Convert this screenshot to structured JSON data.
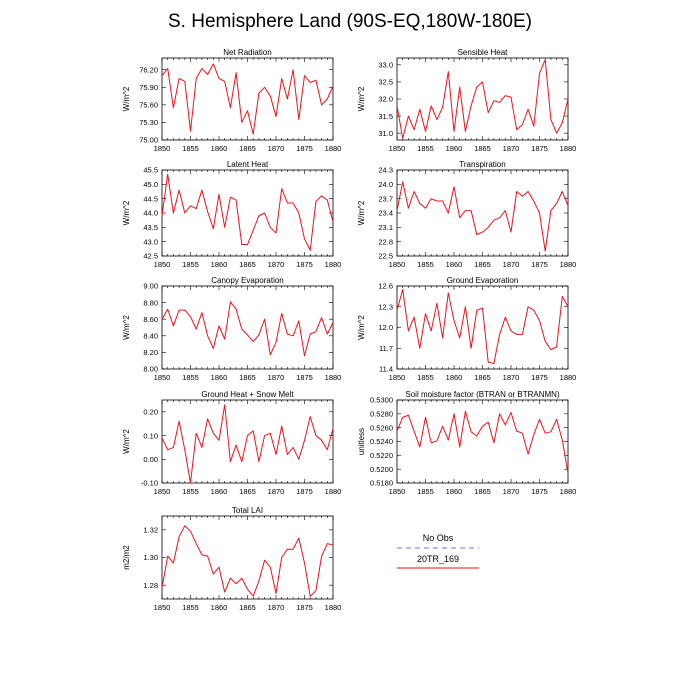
{
  "title": "S. Hemisphere Land (90S-EQ,180W-180E)",
  "colors": {
    "model": "#e8141c",
    "obs": "#8c8ce6",
    "axis": "#000000"
  },
  "legend": {
    "obs_label": "No Obs",
    "model_label": "20TR_169"
  },
  "chart_data": [
    {
      "type": "line",
      "title": "Net Radiation",
      "xlabel": "",
      "ylabel": "W/m^2",
      "xlim": [
        1850,
        1880
      ],
      "ylim": [
        75.0,
        76.4
      ],
      "x_ticks": [
        1850,
        1855,
        1860,
        1865,
        1870,
        1875,
        1880
      ],
      "y_ticks": [
        "75.00",
        "75.30",
        "75.60",
        "75.90",
        "76.20"
      ],
      "series": [
        {
          "name": "20TR_169",
          "x": [
            1850,
            1851,
            1852,
            1853,
            1854,
            1855,
            1856,
            1857,
            1858,
            1859,
            1860,
            1861,
            1862,
            1863,
            1864,
            1865,
            1866,
            1867,
            1868,
            1869,
            1870,
            1871,
            1872,
            1873,
            1874,
            1875,
            1876,
            1877,
            1878,
            1879,
            1880
          ],
          "values": [
            76.1,
            76.22,
            75.55,
            76.05,
            76.0,
            75.15,
            76.05,
            76.22,
            76.12,
            76.3,
            76.05,
            76.0,
            75.55,
            76.15,
            75.3,
            75.5,
            75.1,
            75.8,
            75.9,
            75.75,
            75.4,
            76.05,
            75.7,
            76.2,
            75.35,
            76.1,
            75.98,
            76.02,
            75.6,
            75.7,
            75.92
          ]
        }
      ]
    },
    {
      "type": "line",
      "title": "Sensible Heat",
      "xlabel": "",
      "ylabel": "W/m^2",
      "xlim": [
        1850,
        1880
      ],
      "ylim": [
        30.8,
        33.2
      ],
      "x_ticks": [
        1850,
        1855,
        1860,
        1865,
        1870,
        1875,
        1880
      ],
      "y_ticks": [
        "31.0",
        "31.5",
        "32.0",
        "32.5",
        "33.0"
      ],
      "series": [
        {
          "name": "20TR_169",
          "x": [
            1850,
            1851,
            1852,
            1853,
            1854,
            1855,
            1856,
            1857,
            1858,
            1859,
            1860,
            1861,
            1862,
            1863,
            1864,
            1865,
            1866,
            1867,
            1868,
            1869,
            1870,
            1871,
            1872,
            1873,
            1874,
            1875,
            1876,
            1877,
            1878,
            1879,
            1880
          ],
          "values": [
            31.8,
            30.85,
            31.5,
            31.1,
            31.7,
            31.05,
            31.8,
            31.4,
            31.75,
            32.8,
            31.05,
            32.35,
            31.05,
            31.8,
            32.35,
            32.5,
            31.6,
            31.95,
            31.9,
            32.1,
            32.05,
            31.1,
            31.25,
            31.7,
            31.2,
            32.75,
            33.15,
            31.4,
            31.0,
            31.3,
            32.0
          ]
        }
      ]
    },
    {
      "type": "line",
      "title": "Latent Heat",
      "xlabel": "",
      "ylabel": "W/m^2",
      "xlim": [
        1850,
        1880
      ],
      "ylim": [
        42.5,
        45.5
      ],
      "x_ticks": [
        1850,
        1855,
        1860,
        1865,
        1870,
        1875,
        1880
      ],
      "y_ticks": [
        "42.5",
        "43.0",
        "43.5",
        "44.0",
        "44.5",
        "45.0",
        "45.5"
      ],
      "series": [
        {
          "name": "20TR_169",
          "x": [
            1850,
            1851,
            1852,
            1853,
            1854,
            1855,
            1856,
            1857,
            1858,
            1859,
            1860,
            1861,
            1862,
            1863,
            1864,
            1865,
            1866,
            1867,
            1868,
            1869,
            1870,
            1871,
            1872,
            1873,
            1874,
            1875,
            1876,
            1877,
            1878,
            1879,
            1880
          ],
          "values": [
            43.9,
            45.35,
            44.0,
            44.8,
            44.0,
            44.25,
            44.15,
            44.8,
            44.05,
            43.45,
            44.65,
            43.5,
            44.55,
            44.45,
            42.9,
            42.9,
            43.4,
            43.9,
            44.0,
            43.5,
            43.3,
            44.85,
            44.35,
            44.35,
            44.0,
            43.1,
            42.7,
            44.4,
            44.6,
            44.45,
            43.7
          ]
        }
      ]
    },
    {
      "type": "line",
      "title": "Transpiration",
      "xlabel": "",
      "ylabel": "W/m^2",
      "xlim": [
        1850,
        1880
      ],
      "ylim": [
        22.5,
        24.3
      ],
      "x_ticks": [
        1850,
        1855,
        1860,
        1865,
        1870,
        1875,
        1880
      ],
      "y_ticks": [
        "22.5",
        "22.8",
        "23.1",
        "23.4",
        "23.7",
        "24.0",
        "24.3"
      ],
      "series": [
        {
          "name": "20TR_169",
          "x": [
            1850,
            1851,
            1852,
            1853,
            1854,
            1855,
            1856,
            1857,
            1858,
            1859,
            1860,
            1861,
            1862,
            1863,
            1864,
            1865,
            1866,
            1867,
            1868,
            1869,
            1870,
            1871,
            1872,
            1873,
            1874,
            1875,
            1876,
            1877,
            1878,
            1879,
            1880
          ],
          "values": [
            23.45,
            24.05,
            23.5,
            23.85,
            23.6,
            23.5,
            23.7,
            23.65,
            23.65,
            23.4,
            23.95,
            23.3,
            23.45,
            23.45,
            22.95,
            23.0,
            23.1,
            23.25,
            23.3,
            23.45,
            23.0,
            23.85,
            23.75,
            23.85,
            23.65,
            23.4,
            22.6,
            23.45,
            23.6,
            23.85,
            23.55
          ]
        }
      ]
    },
    {
      "type": "line",
      "title": "Canopy Evaporation",
      "xlabel": "",
      "ylabel": "W/m^2",
      "xlim": [
        1850,
        1880
      ],
      "ylim": [
        8.0,
        9.0
      ],
      "x_ticks": [
        1850,
        1855,
        1860,
        1865,
        1870,
        1875,
        1880
      ],
      "y_ticks": [
        "8.00",
        "8.20",
        "8.40",
        "8.60",
        "8.80",
        "9.00"
      ],
      "series": [
        {
          "name": "20TR_169",
          "x": [
            1850,
            1851,
            1852,
            1853,
            1854,
            1855,
            1856,
            1857,
            1858,
            1859,
            1860,
            1861,
            1862,
            1863,
            1864,
            1865,
            1866,
            1867,
            1868,
            1869,
            1870,
            1871,
            1872,
            1873,
            1874,
            1875,
            1876,
            1877,
            1878,
            1879,
            1880
          ],
          "values": [
            8.6,
            8.72,
            8.52,
            8.71,
            8.71,
            8.63,
            8.48,
            8.68,
            8.4,
            8.25,
            8.52,
            8.36,
            8.81,
            8.72,
            8.48,
            8.41,
            8.33,
            8.41,
            8.6,
            8.17,
            8.32,
            8.67,
            8.42,
            8.4,
            8.58,
            8.16,
            8.42,
            8.45,
            8.62,
            8.42,
            8.56
          ]
        }
      ]
    },
    {
      "type": "line",
      "title": "Ground Evaporation",
      "xlabel": "",
      "ylabel": "W/m^2",
      "xlim": [
        1850,
        1880
      ],
      "ylim": [
        11.4,
        12.6
      ],
      "x_ticks": [
        1850,
        1855,
        1860,
        1865,
        1870,
        1875,
        1880
      ],
      "y_ticks": [
        "11.4",
        "11.7",
        "12.0",
        "12.3",
        "12.6"
      ],
      "series": [
        {
          "name": "20TR_169",
          "x": [
            1850,
            1851,
            1852,
            1853,
            1854,
            1855,
            1856,
            1857,
            1858,
            1859,
            1860,
            1861,
            1862,
            1863,
            1864,
            1865,
            1866,
            1867,
            1868,
            1869,
            1870,
            1871,
            1872,
            1873,
            1874,
            1875,
            1876,
            1877,
            1878,
            1879,
            1880
          ],
          "values": [
            12.25,
            12.55,
            11.95,
            12.15,
            11.7,
            12.2,
            11.95,
            12.35,
            11.85,
            12.5,
            12.1,
            11.85,
            12.3,
            11.7,
            12.25,
            12.28,
            11.5,
            11.48,
            11.9,
            12.15,
            11.95,
            11.9,
            11.9,
            12.3,
            12.25,
            12.1,
            11.8,
            11.68,
            11.72,
            12.45,
            12.3
          ]
        }
      ]
    },
    {
      "type": "line",
      "title": "Ground Heat + Snow Melt",
      "xlabel": "",
      "ylabel": "W/m^2",
      "xlim": [
        1850,
        1880
      ],
      "ylim": [
        -0.1,
        0.25
      ],
      "x_ticks": [
        1850,
        1855,
        1860,
        1865,
        1870,
        1875,
        1880
      ],
      "y_ticks": [
        "-0.10",
        "0.00",
        "0.10",
        "0.20"
      ],
      "series": [
        {
          "name": "20TR_169",
          "x": [
            1850,
            1851,
            1852,
            1853,
            1854,
            1855,
            1856,
            1857,
            1858,
            1859,
            1860,
            1861,
            1862,
            1863,
            1864,
            1865,
            1866,
            1867,
            1868,
            1869,
            1870,
            1871,
            1872,
            1873,
            1874,
            1875,
            1876,
            1877,
            1878,
            1879,
            1880
          ],
          "values": [
            0.09,
            0.04,
            0.05,
            0.16,
            0.04,
            -0.1,
            0.11,
            0.05,
            0.17,
            0.11,
            0.08,
            0.23,
            -0.01,
            0.06,
            -0.01,
            0.1,
            0.12,
            -0.01,
            0.1,
            0.11,
            0.02,
            0.14,
            0.02,
            0.05,
            0.0,
            0.08,
            0.18,
            0.1,
            0.08,
            0.04,
            0.13
          ]
        }
      ]
    },
    {
      "type": "line",
      "title": "Soil moisture factor (BTRAN or BTRANMN)",
      "xlabel": "",
      "ylabel": "unitless",
      "xlim": [
        1850,
        1880
      ],
      "ylim": [
        0.518,
        0.53
      ],
      "x_ticks": [
        1850,
        1855,
        1860,
        1865,
        1870,
        1875,
        1880
      ],
      "y_ticks": [
        "0.5180",
        "0.5200",
        "0.5220",
        "0.5240",
        "0.5260",
        "0.5280",
        "0.5300"
      ],
      "series": [
        {
          "name": "20TR_169",
          "x": [
            1850,
            1851,
            1852,
            1853,
            1854,
            1855,
            1856,
            1857,
            1858,
            1859,
            1860,
            1861,
            1862,
            1863,
            1864,
            1865,
            1866,
            1867,
            1868,
            1869,
            1870,
            1871,
            1872,
            1873,
            1874,
            1875,
            1876,
            1877,
            1878,
            1879,
            1880
          ],
          "values": [
            0.5255,
            0.5275,
            0.5278,
            0.5255,
            0.5232,
            0.5275,
            0.5238,
            0.5241,
            0.5262,
            0.5242,
            0.528,
            0.5232,
            0.5284,
            0.5254,
            0.5248,
            0.5262,
            0.5268,
            0.5238,
            0.528,
            0.5264,
            0.5282,
            0.5255,
            0.5252,
            0.5222,
            0.525,
            0.5272,
            0.5252,
            0.5254,
            0.5272,
            0.5242,
            0.5194
          ]
        }
      ]
    },
    {
      "type": "line",
      "title": "Total LAI",
      "xlabel": "",
      "ylabel": "m2/m2",
      "xlim": [
        1850,
        1880
      ],
      "ylim": [
        1.27,
        1.33
      ],
      "x_ticks": [
        1850,
        1855,
        1860,
        1865,
        1870,
        1875,
        1880
      ],
      "y_ticks": [
        "1.28",
        "1.30",
        "1.32"
      ],
      "series": [
        {
          "name": "20TR_169",
          "x": [
            1850,
            1851,
            1852,
            1853,
            1854,
            1855,
            1856,
            1857,
            1858,
            1859,
            1860,
            1861,
            1862,
            1863,
            1864,
            1865,
            1866,
            1867,
            1868,
            1869,
            1870,
            1871,
            1872,
            1873,
            1874,
            1875,
            1876,
            1877,
            1878,
            1879,
            1880
          ],
          "values": [
            1.278,
            1.301,
            1.296,
            1.315,
            1.323,
            1.319,
            1.31,
            1.302,
            1.301,
            1.288,
            1.293,
            1.275,
            1.285,
            1.281,
            1.285,
            1.277,
            1.272,
            1.283,
            1.298,
            1.293,
            1.274,
            1.3,
            1.306,
            1.306,
            1.314,
            1.296,
            1.272,
            1.276,
            1.301,
            1.31,
            1.309
          ]
        }
      ]
    }
  ]
}
